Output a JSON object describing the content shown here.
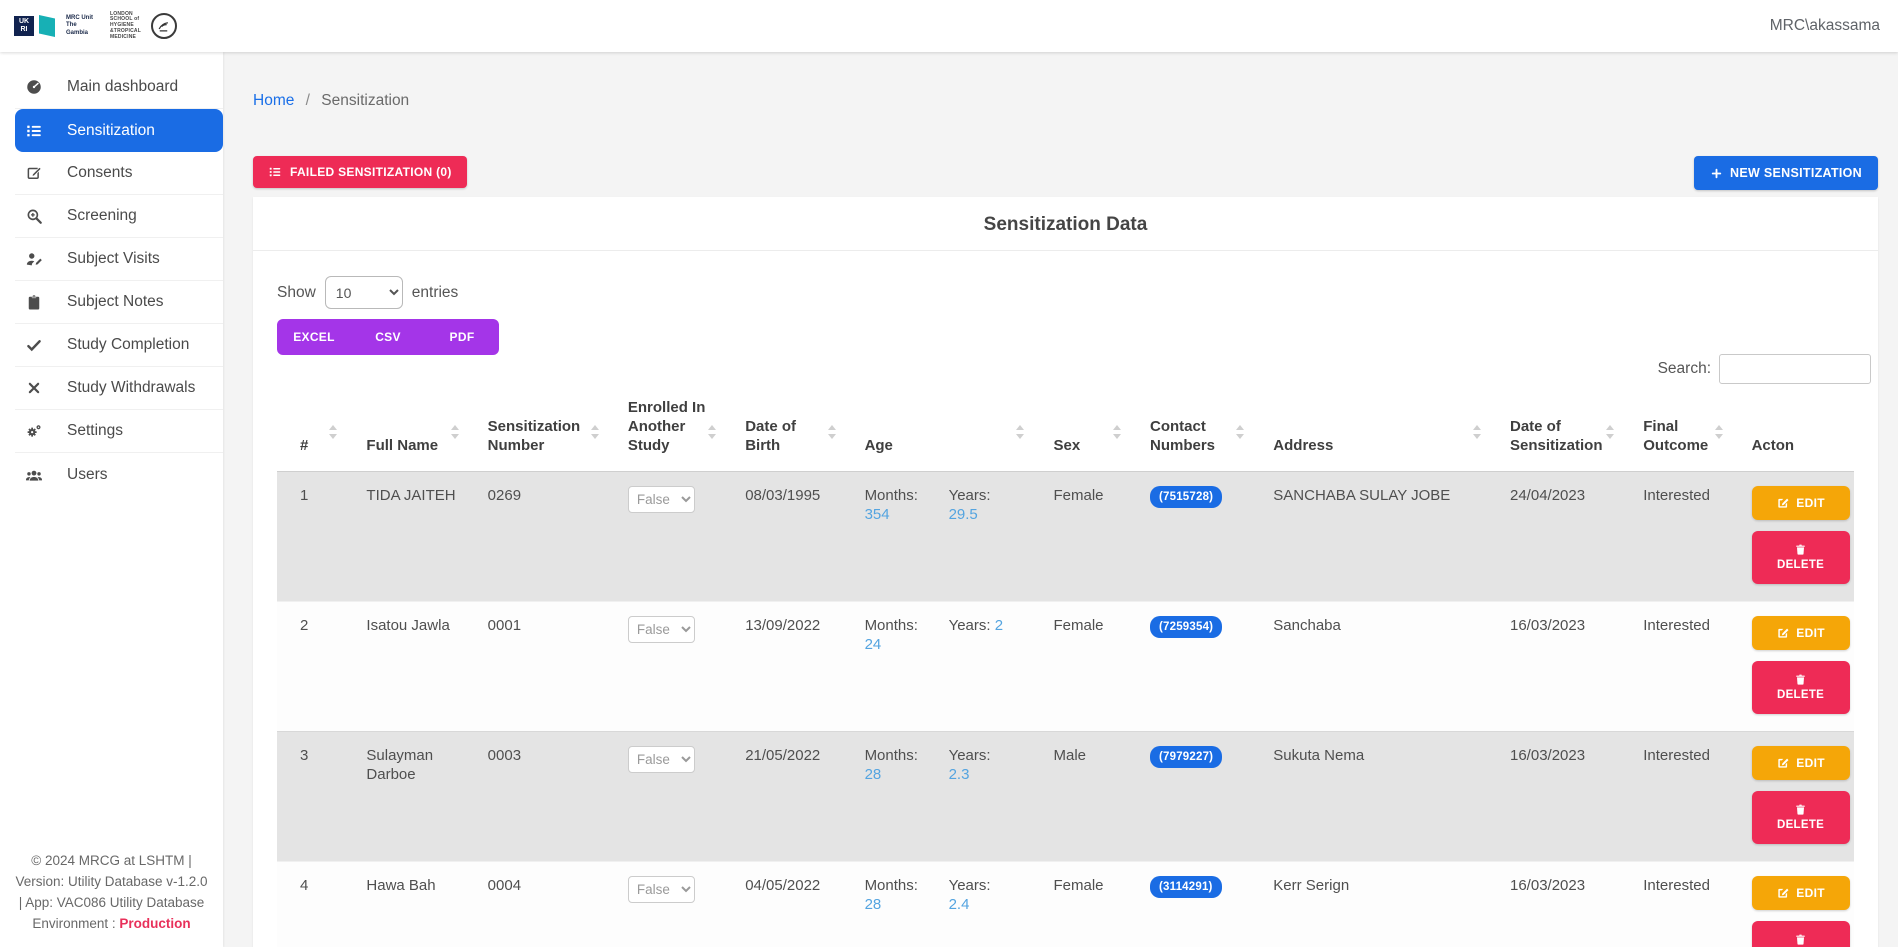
{
  "topbar": {
    "username": "MRC\\akassama",
    "logos": {
      "ukri_lines": [
        "UK",
        "RI"
      ],
      "mrc_lines": [
        "MRC Unit",
        "The",
        "Gambia"
      ],
      "lshtm_lines": [
        "LONDON",
        "SCHOOL of",
        "HYGIENE",
        "&TROPICAL",
        "MEDICINE"
      ]
    }
  },
  "sidebar": {
    "items": [
      {
        "id": "main-dashboard",
        "label": "Main dashboard",
        "icon": "dashboard-icon",
        "active": false
      },
      {
        "id": "sensitization",
        "label": "Sensitization",
        "icon": "list-icon",
        "active": true
      },
      {
        "id": "consents",
        "label": "Consents",
        "icon": "edit-note-icon",
        "active": false
      },
      {
        "id": "screening",
        "label": "Screening",
        "icon": "search-plus-icon",
        "active": false
      },
      {
        "id": "subject-visits",
        "label": "Subject Visits",
        "icon": "user-edit-icon",
        "active": false
      },
      {
        "id": "subject-notes",
        "label": "Subject Notes",
        "icon": "clipboard-icon",
        "active": false
      },
      {
        "id": "study-completion",
        "label": "Study Completion",
        "icon": "check-icon",
        "active": false
      },
      {
        "id": "study-withdrawals",
        "label": "Study Withdrawals",
        "icon": "x-icon",
        "active": false
      },
      {
        "id": "settings",
        "label": "Settings",
        "icon": "gears-icon",
        "active": false
      },
      {
        "id": "users",
        "label": "Users",
        "icon": "users-icon",
        "active": false
      }
    ],
    "footer": {
      "copyright": "© 2024 MRCG at LSHTM | Version: Utility Database v-1.2.0 | App: VAC086 Utility Database",
      "environment_label": "Environment :",
      "environment_value": "Production"
    }
  },
  "breadcrumb": {
    "home": "Home",
    "separator": "/",
    "current": "Sensitization"
  },
  "toolbar": {
    "failed_button": "FAILED SENSITIZATION (0)",
    "new_button": "NEW SENSITIZATION"
  },
  "card": {
    "title": "Sensitization Data",
    "length_menu": {
      "show": "Show",
      "selected": "10",
      "entries": "entries"
    },
    "export_buttons": [
      "EXCEL",
      "CSV",
      "PDF"
    ],
    "search_label": "Search:",
    "search_value": ""
  },
  "table": {
    "headers": [
      {
        "label": "#",
        "sortable": true
      },
      {
        "label": "Full Name",
        "sortable": true
      },
      {
        "label": "Sensitization Number",
        "sortable": true
      },
      {
        "label": "Enrolled In Another Study",
        "sortable": true
      },
      {
        "label": "Date of Birth",
        "sortable": true
      },
      {
        "label": "Age",
        "sortable": true
      },
      {
        "label": "Sex",
        "sortable": true
      },
      {
        "label": "Contact Numbers",
        "sortable": true
      },
      {
        "label": "Address",
        "sortable": true
      },
      {
        "label": "Date of Sensitization",
        "sortable": true
      },
      {
        "label": "Final Outcome",
        "sortable": true
      },
      {
        "label": "Acton",
        "sortable": false
      }
    ],
    "age_labels": {
      "months": "Months:",
      "years": "Years:"
    },
    "actions": {
      "edit": "EDIT",
      "delete": "DELETE"
    },
    "rows": [
      {
        "index": "1",
        "full_name": "TIDA JAITEH",
        "sensitization_number": "0269",
        "enrolled_in_another_study": "False",
        "date_of_birth": "08/03/1995",
        "age_months": "354",
        "age_years": "29.5",
        "sex": "Female",
        "contact_numbers": "(7515728)",
        "address": "SANCHABA SULAY JOBE",
        "date_of_sensitization": "24/04/2023",
        "final_outcome": "Interested"
      },
      {
        "index": "2",
        "full_name": "Isatou Jawla",
        "sensitization_number": "0001",
        "enrolled_in_another_study": "False",
        "date_of_birth": "13/09/2022",
        "age_months": "24",
        "age_years": "2",
        "sex": "Female",
        "contact_numbers": "(7259354)",
        "address": "Sanchaba",
        "date_of_sensitization": "16/03/2023",
        "final_outcome": "Interested"
      },
      {
        "index": "3",
        "full_name": "Sulayman Darboe",
        "sensitization_number": "0003",
        "enrolled_in_another_study": "False",
        "date_of_birth": "21/05/2022",
        "age_months": "28",
        "age_years": "2.3",
        "sex": "Male",
        "contact_numbers": "(7979227)",
        "address": "Sukuta Nema",
        "date_of_sensitization": "16/03/2023",
        "final_outcome": "Interested"
      },
      {
        "index": "4",
        "full_name": "Hawa Bah",
        "sensitization_number": "0004",
        "enrolled_in_another_study": "False",
        "date_of_birth": "04/05/2022",
        "age_months": "28",
        "age_years": "2.4",
        "sex": "Female",
        "contact_numbers": "(3114291)",
        "address": "Kerr Serign",
        "date_of_sensitization": "16/03/2023",
        "final_outcome": "Interested"
      }
    ]
  },
  "colors": {
    "primary_blue": "#1a6ce4",
    "danger_pink": "#ee2b56",
    "warning_orange": "#f5a608",
    "export_purple": "#a435e8",
    "link_blue": "#1a6fe8",
    "age_value_blue": "#54a4e0",
    "environment_red": "#e8305a"
  }
}
